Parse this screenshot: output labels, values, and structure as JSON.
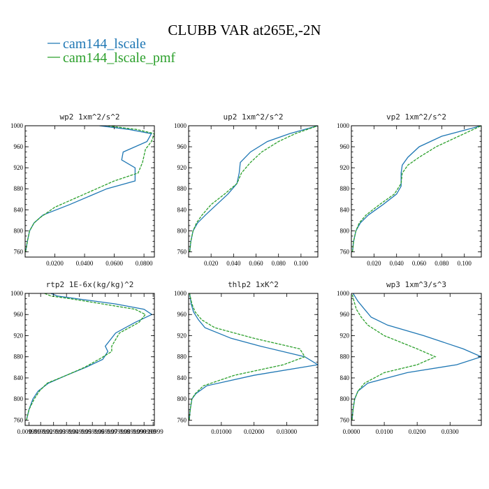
{
  "figure": {
    "title": "CLUBB VAR at265E,-2N",
    "legend": [
      {
        "label": "cam144_lscale",
        "color": "#1f77b4",
        "dash": "solid"
      },
      {
        "label": "cam144_lscale_pmf",
        "color": "#2ca02c",
        "dash": "dashed"
      }
    ]
  },
  "chart_data": [
    {
      "type": "line",
      "title": "wp2  1xm^2/s^2",
      "xlim": [
        0,
        0.087
      ],
      "ylim": [
        1000,
        750
      ],
      "yticks": [
        760,
        800,
        840,
        880,
        920,
        960,
        1000
      ],
      "xticks": [
        0.02,
        0.04,
        0.06,
        0.08
      ],
      "xtick_labels": [
        "0.0200",
        "0.0400",
        "0.0600",
        "0.0800"
      ],
      "series": [
        {
          "name": "cam144_lscale",
          "color": "#1f77b4",
          "dash": "solid",
          "x": [
            0.0003,
            0.0015,
            0.003,
            0.006,
            0.012,
            0.03,
            0.055,
            0.074,
            0.074,
            0.065,
            0.066,
            0.082,
            0.085,
            0.07,
            0.05
          ],
          "y": [
            760,
            780,
            800,
            815,
            830,
            850,
            880,
            895,
            920,
            935,
            950,
            970,
            985,
            993,
            1000
          ]
        },
        {
          "name": "cam144_lscale_pmf",
          "color": "#2ca02c",
          "dash": "dashed",
          "x": [
            0.0003,
            0.0015,
            0.003,
            0.006,
            0.01,
            0.02,
            0.04,
            0.06,
            0.076,
            0.079,
            0.081,
            0.085,
            0.087,
            0.075,
            0.055
          ],
          "y": [
            760,
            780,
            800,
            815,
            825,
            845,
            870,
            895,
            910,
            930,
            955,
            970,
            985,
            993,
            1000
          ]
        }
      ]
    },
    {
      "type": "line",
      "title": "up2  1xm^2/s^2",
      "xlim": [
        0,
        0.115
      ],
      "ylim": [
        1000,
        750
      ],
      "yticks": [
        760,
        800,
        840,
        880,
        920,
        960,
        1000
      ],
      "xticks": [
        0.02,
        0.04,
        0.06,
        0.08,
        0.1
      ],
      "xtick_labels": [
        "0.020",
        "0.040",
        "0.060",
        "0.080",
        "0.100"
      ],
      "series": [
        {
          "name": "cam144_lscale",
          "color": "#1f77b4",
          "dash": "solid",
          "x": [
            0.001,
            0.002,
            0.004,
            0.008,
            0.015,
            0.025,
            0.035,
            0.043,
            0.045,
            0.046,
            0.055,
            0.07,
            0.09,
            0.115
          ],
          "y": [
            760,
            780,
            800,
            815,
            830,
            850,
            870,
            890,
            910,
            930,
            950,
            970,
            985,
            1000
          ]
        },
        {
          "name": "cam144_lscale_pmf",
          "color": "#2ca02c",
          "dash": "dashed",
          "x": [
            0.001,
            0.002,
            0.004,
            0.007,
            0.012,
            0.02,
            0.032,
            0.043,
            0.047,
            0.055,
            0.065,
            0.08,
            0.095,
            0.115
          ],
          "y": [
            760,
            780,
            800,
            815,
            830,
            850,
            870,
            890,
            910,
            930,
            950,
            970,
            985,
            1000
          ]
        }
      ]
    },
    {
      "type": "line",
      "title": "vp2  1xm^2/s^2",
      "xlim": [
        0,
        0.115
      ],
      "ylim": [
        1000,
        750
      ],
      "yticks": [
        760,
        800,
        840,
        880,
        920,
        960,
        1000
      ],
      "xticks": [
        0.02,
        0.04,
        0.06,
        0.08,
        0.1
      ],
      "xtick_labels": [
        "0.020",
        "0.040",
        "0.060",
        "0.080",
        "0.100"
      ],
      "series": [
        {
          "name": "cam144_lscale",
          "color": "#1f77b4",
          "dash": "solid",
          "x": [
            0.001,
            0.002,
            0.004,
            0.008,
            0.015,
            0.028,
            0.04,
            0.044,
            0.044,
            0.045,
            0.05,
            0.06,
            0.08,
            0.115
          ],
          "y": [
            760,
            780,
            800,
            815,
            830,
            850,
            870,
            885,
            910,
            925,
            940,
            960,
            980,
            1000
          ]
        },
        {
          "name": "cam144_lscale_pmf",
          "color": "#2ca02c",
          "dash": "dashed",
          "x": [
            0.001,
            0.002,
            0.004,
            0.007,
            0.013,
            0.025,
            0.038,
            0.044,
            0.045,
            0.05,
            0.06,
            0.075,
            0.095,
            0.115
          ],
          "y": [
            760,
            780,
            800,
            815,
            830,
            850,
            870,
            890,
            910,
            925,
            940,
            960,
            980,
            1000
          ]
        }
      ]
    },
    {
      "type": "line",
      "title": "rtp2  1E-6x(kg/kg)^2",
      "xlim": [
        0,
        1
      ],
      "ylim": [
        1000,
        750
      ],
      "yticks": [
        760,
        800,
        840,
        880,
        920,
        960,
        1000
      ],
      "xticks": [
        0.03,
        0.12,
        0.22,
        0.32,
        0.42,
        0.52,
        0.62,
        0.72,
        0.82,
        0.92,
        0.99
      ],
      "xtick_labels": [
        "0.009999",
        "0.019999",
        "0.029999",
        "0.039999",
        "0.049999",
        "0.059999",
        "0.069999",
        "0.079999",
        "0.089999",
        "0.099999",
        "0.10999"
      ],
      "series": [
        {
          "name": "cam144_lscale",
          "color": "#1f77b4",
          "dash": "solid",
          "x": [
            0.01,
            0.03,
            0.06,
            0.1,
            0.18,
            0.32,
            0.47,
            0.6,
            0.64,
            0.62,
            0.7,
            0.85,
            0.98,
            0.92,
            0.7,
            0.4,
            0.25,
            0.2
          ],
          "y": [
            760,
            780,
            800,
            815,
            830,
            845,
            860,
            875,
            890,
            900,
            925,
            945,
            960,
            970,
            980,
            990,
            995,
            1000
          ]
        },
        {
          "name": "cam144_lscale_pmf",
          "color": "#2ca02c",
          "dash": "dashed",
          "x": [
            0.01,
            0.03,
            0.07,
            0.11,
            0.17,
            0.32,
            0.46,
            0.57,
            0.67,
            0.67,
            0.73,
            0.88,
            0.93,
            0.85,
            0.6,
            0.35,
            0.2,
            0.15
          ],
          "y": [
            760,
            780,
            800,
            815,
            830,
            845,
            860,
            875,
            890,
            900,
            925,
            945,
            960,
            970,
            980,
            990,
            995,
            1000
          ]
        }
      ]
    },
    {
      "type": "line",
      "title": "thlp2  1xK^2",
      "xlim": [
        0,
        0.0395
      ],
      "ylim": [
        1000,
        750
      ],
      "yticks": [
        760,
        800,
        840,
        880,
        920,
        960,
        1000
      ],
      "xticks": [
        0.01,
        0.02,
        0.03
      ],
      "xtick_labels": [
        "0.01000",
        "0.02000",
        "0.03000"
      ],
      "series": [
        {
          "name": "cam144_lscale",
          "color": "#1f77b4",
          "dash": "solid",
          "x": [
            0.0002,
            0.0005,
            0.001,
            0.0022,
            0.0055,
            0.02,
            0.0395,
            0.0355,
            0.022,
            0.013,
            0.005,
            0.003,
            0.0015,
            0.0008,
            0.0003
          ],
          "y": [
            760,
            780,
            800,
            810,
            825,
            845,
            865,
            880,
            900,
            915,
            935,
            950,
            965,
            980,
            1000
          ]
        },
        {
          "name": "cam144_lscale_pmf",
          "color": "#2ca02c",
          "dash": "dashed",
          "x": [
            0.0002,
            0.0005,
            0.001,
            0.002,
            0.0045,
            0.014,
            0.029,
            0.0355,
            0.034,
            0.02,
            0.008,
            0.004,
            0.002,
            0.001,
            0.0003
          ],
          "y": [
            760,
            780,
            800,
            810,
            825,
            845,
            865,
            880,
            895,
            915,
            935,
            950,
            965,
            980,
            1000
          ]
        }
      ]
    },
    {
      "type": "line",
      "title": "wp3  1xm^3/s^3",
      "xlim": [
        0,
        0.0395
      ],
      "ylim": [
        1000,
        750
      ],
      "yticks": [
        760,
        800,
        840,
        880,
        920,
        960,
        1000
      ],
      "xticks": [
        0,
        0.01,
        0.02,
        0.03
      ],
      "xtick_labels": [
        "0.0000",
        "0.0100",
        "0.0200",
        "0.0300"
      ],
      "series": [
        {
          "name": "cam144_lscale",
          "color": "#1f77b4",
          "dash": "solid",
          "x": [
            0.0002,
            0.0005,
            0.001,
            0.002,
            0.005,
            0.017,
            0.032,
            0.0395,
            0.034,
            0.022,
            0.011,
            0.006,
            0.004,
            0.002,
            0.0005
          ],
          "y": [
            760,
            780,
            800,
            815,
            830,
            850,
            865,
            880,
            895,
            920,
            940,
            955,
            970,
            985,
            1000
          ]
        },
        {
          "name": "cam144_lscale_pmf",
          "color": "#2ca02c",
          "dash": "dashed",
          "x": [
            0.0002,
            0.0005,
            0.001,
            0.002,
            0.004,
            0.01,
            0.02,
            0.0255,
            0.02,
            0.01,
            0.005,
            0.003,
            0.0015,
            0.0008,
            0.0002
          ],
          "y": [
            760,
            780,
            800,
            815,
            830,
            850,
            865,
            880,
            895,
            920,
            940,
            955,
            970,
            985,
            1000
          ]
        }
      ]
    }
  ]
}
